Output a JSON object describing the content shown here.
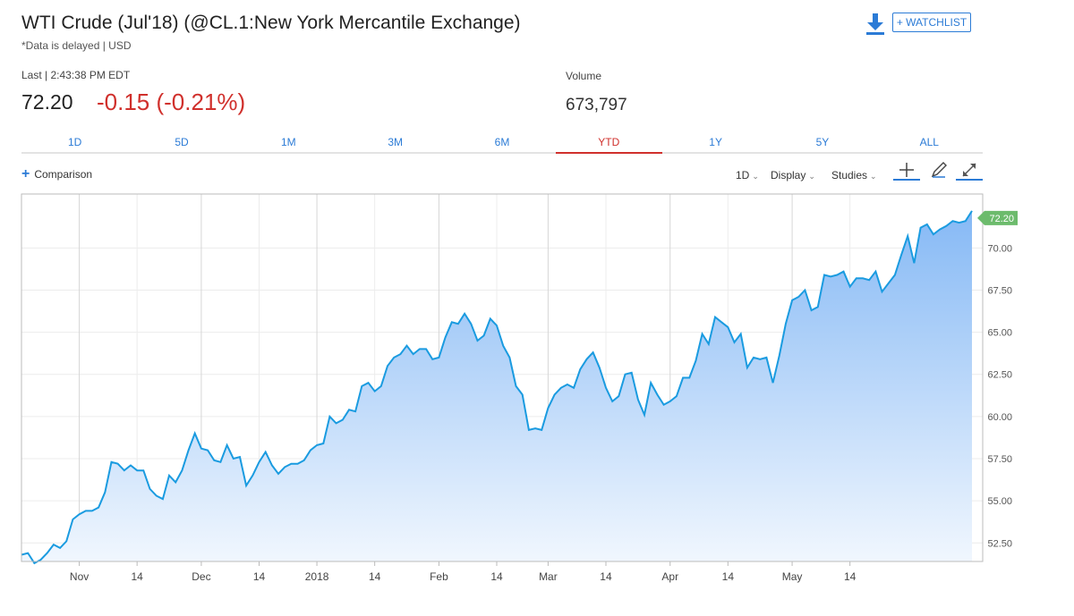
{
  "header": {
    "title": "WTI Crude (Jul'18) (@CL.1:New York Mercantile Exchange)",
    "delayed": "*Data is delayed | USD",
    "watchlist_label": "+ WATCHLIST",
    "download_icon": "download-icon"
  },
  "quote": {
    "last_label": "Last | 2:43:38 PM EDT",
    "last_price": "72.20",
    "change": "-0.15 (-0.21%)",
    "volume_label": "Volume",
    "volume_value": "673,797",
    "change_color": "#d0302c"
  },
  "tabs": [
    {
      "label": "1D",
      "active": false
    },
    {
      "label": "5D",
      "active": false
    },
    {
      "label": "1M",
      "active": false
    },
    {
      "label": "3M",
      "active": false
    },
    {
      "label": "6M",
      "active": false
    },
    {
      "label": "YTD",
      "active": true
    },
    {
      "label": "1Y",
      "active": false
    },
    {
      "label": "5Y",
      "active": false
    },
    {
      "label": "ALL",
      "active": false
    }
  ],
  "toolbar": {
    "comparison_label": "Comparison",
    "interval_label": "1D",
    "display_label": "Display",
    "studies_label": "Studies",
    "crosshair_icon": "crosshair-icon",
    "draw_icon": "pencil-icon",
    "expand_icon": "expand-icon"
  },
  "chart_data": {
    "type": "area",
    "line_color": "#1a9be0",
    "fill_top_color": "#86b9f5",
    "fill_bottom_color": "#f1f7fe",
    "ylim": [
      51.4,
      73.2
    ],
    "y_ticks": [
      "52.50",
      "55.00",
      "57.50",
      "60.00",
      "62.50",
      "65.00",
      "67.50",
      "70.00"
    ],
    "last_value_label": "72.20",
    "last_value_color": "#6cbb6c",
    "x_labels": [
      {
        "label": "Nov",
        "index": 9
      },
      {
        "label": "14",
        "index": 18
      },
      {
        "label": "Dec",
        "index": 28
      },
      {
        "label": "14",
        "index": 37
      },
      {
        "label": "2018",
        "index": 46
      },
      {
        "label": "14",
        "index": 55
      },
      {
        "label": "Feb",
        "index": 65
      },
      {
        "label": "14",
        "index": 74
      },
      {
        "label": "Mar",
        "index": 82
      },
      {
        "label": "14",
        "index": 91
      },
      {
        "label": "Apr",
        "index": 101
      },
      {
        "label": "14",
        "index": 110
      },
      {
        "label": "May",
        "index": 120
      },
      {
        "label": "14",
        "index": 129
      }
    ],
    "values": [
      51.8,
      51.9,
      51.3,
      51.5,
      51.9,
      52.4,
      52.2,
      52.6,
      53.9,
      54.2,
      54.4,
      54.4,
      54.6,
      55.5,
      57.3,
      57.2,
      56.8,
      57.1,
      56.8,
      56.8,
      55.7,
      55.3,
      55.1,
      56.5,
      56.1,
      56.8,
      58.0,
      59.0,
      58.1,
      58.0,
      57.4,
      57.3,
      58.3,
      57.5,
      57.6,
      55.9,
      56.5,
      57.3,
      57.9,
      57.1,
      56.6,
      57.0,
      57.2,
      57.2,
      57.4,
      58.0,
      58.3,
      58.4,
      60.0,
      59.6,
      59.8,
      60.4,
      60.3,
      61.8,
      62.0,
      61.5,
      61.8,
      63.0,
      63.5,
      63.7,
      64.2,
      63.7,
      64.0,
      64.0,
      63.4,
      63.5,
      64.7,
      65.6,
      65.5,
      66.1,
      65.5,
      64.5,
      64.8,
      65.8,
      65.4,
      64.2,
      63.5,
      61.8,
      61.3,
      59.2,
      59.3,
      59.2,
      60.5,
      61.3,
      61.7,
      61.9,
      61.7,
      62.8,
      63.4,
      63.8,
      62.9,
      61.7,
      60.9,
      61.2,
      62.5,
      62.6,
      61.0,
      60.1,
      62.0,
      61.3,
      60.7,
      60.9,
      61.2,
      62.3,
      62.3,
      63.3,
      64.9,
      64.3,
      65.9,
      65.6,
      65.3,
      64.4,
      64.9,
      62.9,
      63.5,
      63.4,
      63.5,
      62.0,
      63.6,
      65.5,
      66.9,
      67.1,
      67.5,
      66.3,
      66.5,
      68.4,
      68.3,
      68.4,
      68.6,
      67.7,
      68.2,
      68.2,
      68.1,
      68.6,
      67.4,
      67.9,
      68.4,
      69.6,
      70.7,
      69.1,
      71.2,
      71.4,
      70.8,
      71.1,
      71.3,
      71.6,
      71.5,
      71.6,
      72.2
    ]
  }
}
